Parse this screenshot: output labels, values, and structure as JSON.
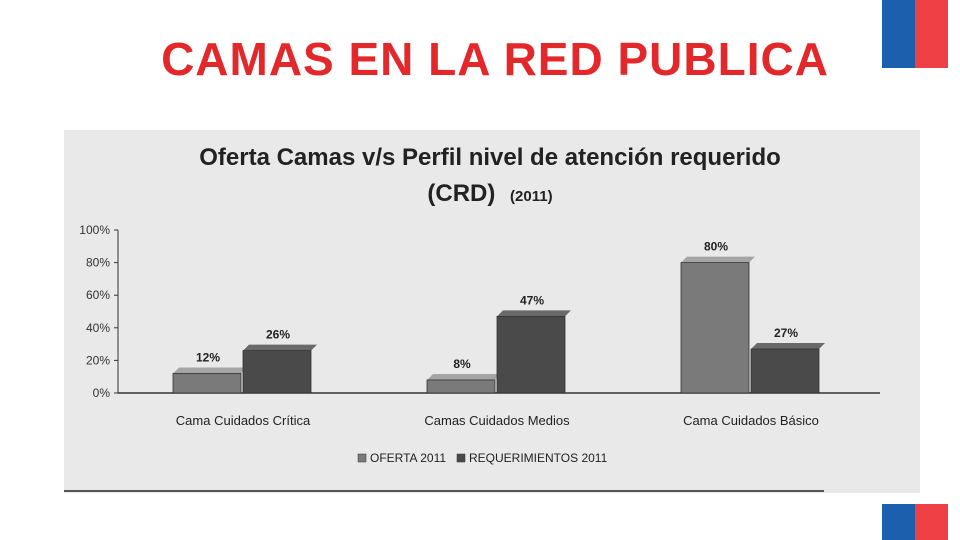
{
  "slide": {
    "title": "CAMAS EN LA RED PUBLICA",
    "accent_color": "#e3282b",
    "flag_colors": {
      "blue": "#1b5fad",
      "red": "#ef4045"
    }
  },
  "chart_data": {
    "type": "bar",
    "title": "Oferta Camas v/s Perfil nivel de atención requerido",
    "subtitle": "(CRD)",
    "subtitle_year": "(2011)",
    "categories": [
      "Cama Cuidados  Crítica",
      "Camas Cuidados Medios",
      "Cama Cuidados Básico"
    ],
    "series": [
      {
        "name": "OFERTA 2011",
        "values": [
          12,
          8,
          80
        ],
        "labels": [
          "12%",
          "8%",
          "80%"
        ],
        "color": "#7a7a7a"
      },
      {
        "name": "REQUERIMIENTOS  2011",
        "values": [
          26,
          47,
          27
        ],
        "labels": [
          "26%",
          "47%",
          "27%"
        ],
        "color": "#4a4a4a"
      }
    ],
    "yticks": [
      "0%",
      "20%",
      "40%",
      "60%",
      "80%",
      "100%"
    ],
    "ylim": [
      0,
      100
    ],
    "grid": false,
    "legend_position": "bottom"
  }
}
